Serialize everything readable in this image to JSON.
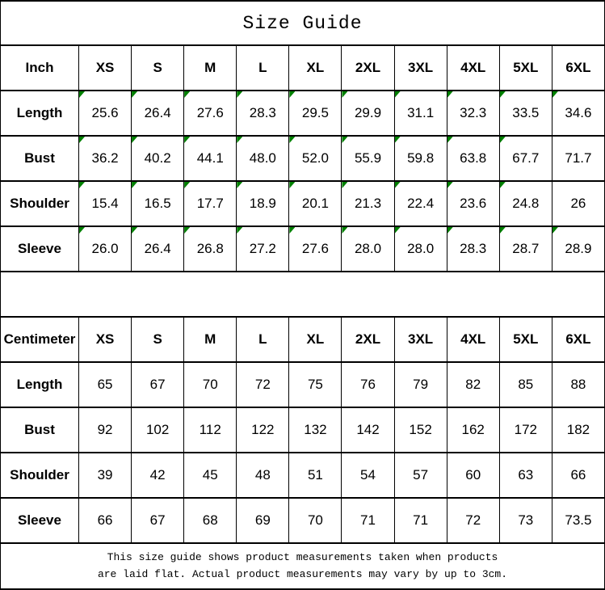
{
  "title": "Size Guide",
  "colors": {
    "background": "#ffffff",
    "border": "#000000",
    "text": "#000000",
    "marker_green": "#008000"
  },
  "size_columns": [
    "XS",
    "S",
    "M",
    "L",
    "XL",
    "2XL",
    "3XL",
    "4XL",
    "5XL",
    "6XL"
  ],
  "inch_table": {
    "unit_label": "Inch",
    "rows": [
      {
        "label": "Length",
        "values": [
          "25.6",
          "26.4",
          "27.6",
          "28.3",
          "29.5",
          "29.9",
          "31.1",
          "32.3",
          "33.5",
          "34.6"
        ],
        "markers": [
          1,
          1,
          1,
          1,
          1,
          1,
          1,
          1,
          1,
          1
        ]
      },
      {
        "label": "Bust",
        "values": [
          "36.2",
          "40.2",
          "44.1",
          "48.0",
          "52.0",
          "55.9",
          "59.8",
          "63.8",
          "67.7",
          "71.7"
        ],
        "markers": [
          1,
          1,
          1,
          1,
          1,
          1,
          1,
          1,
          1,
          0
        ]
      },
      {
        "label": "Shoulder",
        "values": [
          "15.4",
          "16.5",
          "17.7",
          "18.9",
          "20.1",
          "21.3",
          "22.4",
          "23.6",
          "24.8",
          "26"
        ],
        "markers": [
          1,
          1,
          1,
          1,
          1,
          1,
          1,
          1,
          1,
          0
        ]
      },
      {
        "label": "Sleeve",
        "values": [
          "26.0",
          "26.4",
          "26.8",
          "27.2",
          "27.6",
          "28.0",
          "28.0",
          "28.3",
          "28.7",
          "28.9"
        ],
        "markers": [
          1,
          1,
          1,
          1,
          1,
          1,
          1,
          1,
          1,
          1
        ]
      }
    ]
  },
  "centimeter_table": {
    "unit_label": "Centimeter",
    "rows": [
      {
        "label": "Length",
        "values": [
          "65",
          "67",
          "70",
          "72",
          "75",
          "76",
          "79",
          "82",
          "85",
          "88"
        ]
      },
      {
        "label": "Bust",
        "values": [
          "92",
          "102",
          "112",
          "122",
          "132",
          "142",
          "152",
          "162",
          "172",
          "182"
        ]
      },
      {
        "label": "Shoulder",
        "values": [
          "39",
          "42",
          "45",
          "48",
          "51",
          "54",
          "57",
          "60",
          "63",
          "66"
        ]
      },
      {
        "label": "Sleeve",
        "values": [
          "66",
          "67",
          "68",
          "69",
          "70",
          "71",
          "71",
          "72",
          "73",
          "73.5"
        ]
      }
    ]
  },
  "footer": {
    "line1": "This size guide shows product measurements taken when products",
    "line2": "are laid flat. Actual product measurements may vary by up to 3cm."
  }
}
